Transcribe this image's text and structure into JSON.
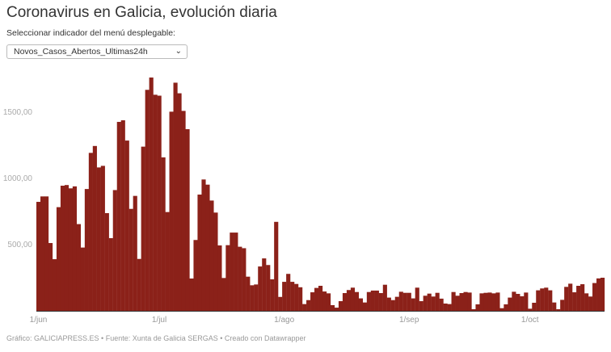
{
  "title": "Coronavirus en Galicia, evolución diaria",
  "selector": {
    "label": "Seleccionar indicador del menú desplegable:",
    "selected": "Novos_Casos_Abertos_Ultimas24h"
  },
  "footer": "Gráfico: GALICIAPRESS.ES • Fuente: Xunta de Galicia SERGAS • Creado con Datawrapper",
  "colors": {
    "bar": "#8b2119"
  },
  "chart_data": {
    "type": "bar",
    "title": "",
    "xlabel": "",
    "ylabel": "",
    "ylim": [
      0,
      1800
    ],
    "grid": false,
    "y_ticks": [
      {
        "value": 500,
        "label": "500,00"
      },
      {
        "value": 1000,
        "label": "1000,00"
      },
      {
        "value": 1500,
        "label": "1500,00"
      }
    ],
    "x_ticks": [
      {
        "category": "1/jun",
        "label": "1/jun"
      },
      {
        "category": "1/jul",
        "label": "1/jul"
      },
      {
        "category": "1/ago",
        "label": "1/ago"
      },
      {
        "category": "1/sep",
        "label": "1/sep"
      },
      {
        "category": "1/oct",
        "label": "1/oct"
      }
    ],
    "categories": [
      "1/jun",
      "2/jun",
      "3/jun",
      "4/jun",
      "5/jun",
      "6/jun",
      "7/jun",
      "8/jun",
      "9/jun",
      "10/jun",
      "11/jun",
      "12/jun",
      "13/jun",
      "14/jun",
      "15/jun",
      "16/jun",
      "17/jun",
      "18/jun",
      "19/jun",
      "20/jun",
      "21/jun",
      "22/jun",
      "23/jun",
      "24/jun",
      "25/jun",
      "26/jun",
      "27/jun",
      "28/jun",
      "29/jun",
      "30/jun",
      "1/jul",
      "2/jul",
      "3/jul",
      "4/jul",
      "5/jul",
      "6/jul",
      "7/jul",
      "8/jul",
      "9/jul",
      "10/jul",
      "11/jul",
      "12/jul",
      "13/jul",
      "14/jul",
      "15/jul",
      "16/jul",
      "17/jul",
      "18/jul",
      "19/jul",
      "20/jul",
      "21/jul",
      "22/jul",
      "23/jul",
      "24/jul",
      "25/jul",
      "26/jul",
      "27/jul",
      "28/jul",
      "29/jul",
      "30/jul",
      "31/jul",
      "1/ago",
      "2/ago",
      "3/ago",
      "4/ago",
      "5/ago",
      "6/ago",
      "7/ago",
      "8/ago",
      "9/ago",
      "10/ago",
      "11/ago",
      "12/ago",
      "13/ago",
      "14/ago",
      "15/ago",
      "16/ago",
      "17/ago",
      "18/ago",
      "19/ago",
      "20/ago",
      "21/ago",
      "22/ago",
      "23/ago",
      "24/ago",
      "25/ago",
      "26/ago",
      "27/ago",
      "28/ago",
      "29/ago",
      "30/ago",
      "31/ago",
      "1/sep",
      "2/sep",
      "3/sep",
      "4/sep",
      "5/sep",
      "6/sep",
      "7/sep",
      "8/sep",
      "9/sep",
      "10/sep",
      "11/sep",
      "12/sep",
      "13/sep",
      "14/sep",
      "15/sep",
      "16/sep",
      "17/sep",
      "18/sep",
      "19/sep",
      "20/sep",
      "21/sep",
      "22/sep",
      "23/sep",
      "24/sep",
      "25/sep",
      "26/sep",
      "27/sep",
      "28/sep",
      "29/sep",
      "30/sep",
      "1/oct",
      "2/oct",
      "3/oct",
      "4/oct",
      "5/oct",
      "6/oct",
      "7/oct",
      "8/oct",
      "9/oct",
      "10/oct",
      "11/oct",
      "12/oct",
      "13/oct",
      "14/oct",
      "15/oct",
      "16/oct",
      "17/oct",
      "18/oct",
      "19/oct"
    ],
    "values": [
      823,
      864,
      864,
      512,
      390,
      783,
      945,
      950,
      925,
      940,
      655,
      478,
      920,
      1193,
      1245,
      1083,
      1095,
      738,
      549,
      912,
      1427,
      1439,
      1286,
      770,
      868,
      392,
      1240,
      1669,
      1762,
      1632,
      1625,
      1159,
      746,
      1504,
      1723,
      1643,
      1510,
      1372,
      244,
      535,
      878,
      992,
      953,
      833,
      742,
      494,
      248,
      496,
      591,
      591,
      484,
      473,
      258,
      193,
      199,
      335,
      396,
      346,
      238,
      672,
      105,
      219,
      279,
      219,
      203,
      178,
      51,
      81,
      140,
      173,
      189,
      146,
      132,
      43,
      24,
      73,
      134,
      157,
      175,
      142,
      94,
      63,
      142,
      153,
      153,
      134,
      197,
      100,
      81,
      106,
      144,
      136,
      136,
      94,
      175,
      73,
      114,
      130,
      108,
      136,
      92,
      55,
      51,
      142,
      114,
      134,
      142,
      138,
      12,
      49,
      132,
      136,
      138,
      132,
      138,
      20,
      49,
      100,
      144,
      128,
      110,
      138,
      16,
      61,
      155,
      169,
      175,
      155,
      63,
      12,
      83,
      181,
      205,
      140,
      189,
      201,
      132,
      108,
      210,
      245,
      250
    ]
  }
}
